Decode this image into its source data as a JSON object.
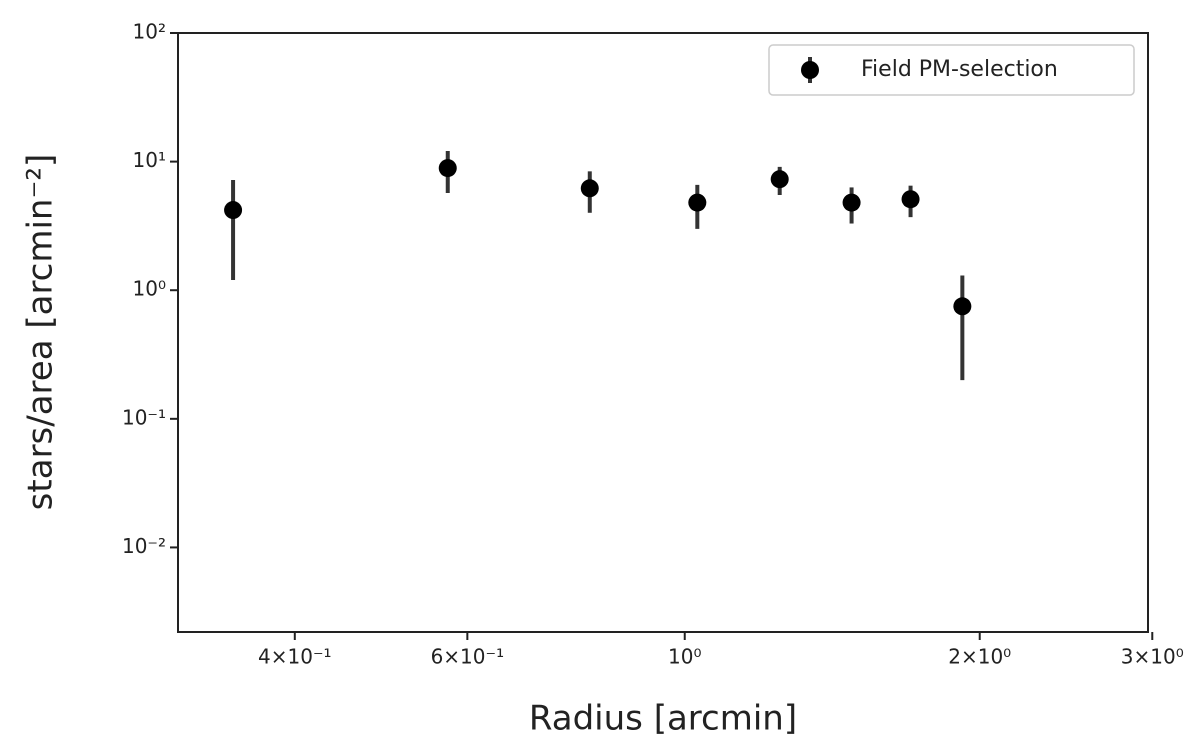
{
  "chart_data": {
    "type": "scatter",
    "x_label": "Radius [arcmin]",
    "y_label": "stars/area [arcmin⁻²]",
    "x": [
      0.346,
      0.573,
      0.8,
      1.03,
      1.25,
      1.48,
      1.7,
      1.92
    ],
    "series": [
      {
        "name": "Field PM-selection",
        "color": "#000000",
        "values": [
          4.2,
          8.9,
          6.2,
          4.8,
          7.3,
          4.8,
          5.1,
          0.75
        ],
        "yerr": [
          3.0,
          3.2,
          2.2,
          1.8,
          1.8,
          1.5,
          1.4,
          0.55
        ]
      }
    ],
    "xscale": "log",
    "yscale": "log",
    "xlim": [
      0.304,
      2.97
    ],
    "ylim": [
      0.0022,
      100
    ],
    "xticks": [
      {
        "value": 0.4,
        "label": "4×10⁻¹"
      },
      {
        "value": 0.6,
        "label": "6×10⁻¹"
      },
      {
        "value": 1,
        "label": "10⁰"
      },
      {
        "value": 2,
        "label": "2×10⁰"
      },
      {
        "value": 3,
        "label": "3×10⁰"
      }
    ],
    "yticks": [
      {
        "value": 0.01,
        "label": "10⁻²"
      },
      {
        "value": 0.1,
        "label": "10⁻¹"
      },
      {
        "value": 1,
        "label": "10⁰"
      },
      {
        "value": 10,
        "label": "10¹"
      },
      {
        "value": 100,
        "label": "10²"
      }
    ],
    "legend": "upper right"
  }
}
